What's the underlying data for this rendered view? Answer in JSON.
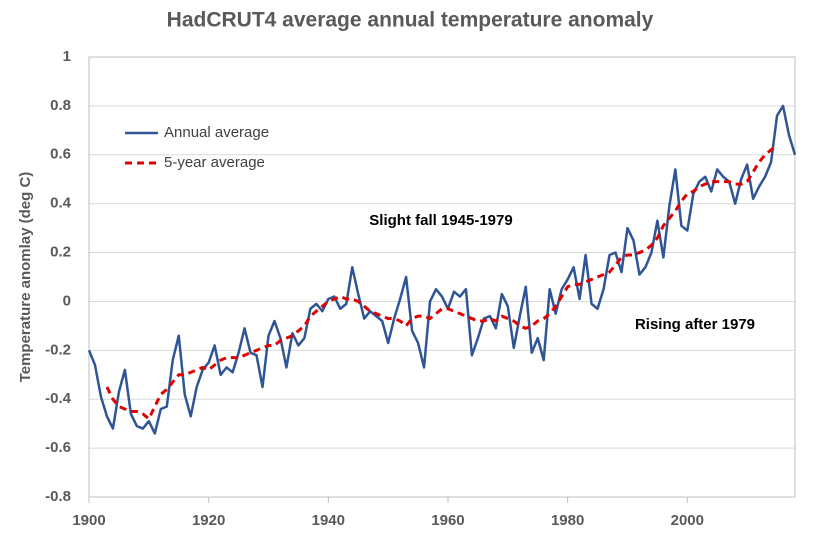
{
  "chart_data": {
    "type": "line",
    "title": "HadCRUT4 average annual temperature anomaly",
    "y_label": "Temperature anomlay (deg C)",
    "annotations": [
      "Slight fall 1945-1979",
      "Rising after 1979"
    ],
    "x": [
      1900,
      1901,
      1902,
      1903,
      1904,
      1905,
      1906,
      1907,
      1908,
      1909,
      1910,
      1911,
      1912,
      1913,
      1914,
      1915,
      1916,
      1917,
      1918,
      1919,
      1920,
      1921,
      1922,
      1923,
      1924,
      1925,
      1926,
      1927,
      1928,
      1929,
      1930,
      1931,
      1932,
      1933,
      1934,
      1935,
      1936,
      1937,
      1938,
      1939,
      1940,
      1941,
      1942,
      1943,
      1944,
      1945,
      1946,
      1947,
      1948,
      1949,
      1950,
      1951,
      1952,
      1953,
      1954,
      1955,
      1956,
      1957,
      1958,
      1959,
      1960,
      1961,
      1962,
      1963,
      1964,
      1965,
      1966,
      1967,
      1968,
      1969,
      1970,
      1971,
      1972,
      1973,
      1974,
      1975,
      1976,
      1977,
      1978,
      1979,
      1980,
      1981,
      1982,
      1983,
      1984,
      1985,
      1986,
      1987,
      1988,
      1989,
      1990,
      1991,
      1992,
      1993,
      1994,
      1995,
      1996,
      1997,
      1998,
      1999,
      2000,
      2001,
      2002,
      2003,
      2004,
      2005,
      2006,
      2007,
      2008,
      2009,
      2010,
      2011,
      2012,
      2013,
      2014,
      2015,
      2016,
      2017,
      2018
    ],
    "series": [
      {
        "name": "Annual average",
        "color": "#2f5597",
        "dash": false,
        "values": [
          -0.2,
          -0.26,
          -0.39,
          -0.47,
          -0.52,
          -0.37,
          -0.28,
          -0.46,
          -0.51,
          -0.52,
          -0.49,
          -0.54,
          -0.44,
          -0.43,
          -0.24,
          -0.14,
          -0.38,
          -0.47,
          -0.35,
          -0.28,
          -0.25,
          -0.18,
          -0.3,
          -0.27,
          -0.29,
          -0.21,
          -0.11,
          -0.21,
          -0.22,
          -0.35,
          -0.14,
          -0.08,
          -0.15,
          -0.27,
          -0.13,
          -0.18,
          -0.15,
          -0.03,
          -0.01,
          -0.04,
          0.01,
          0.02,
          -0.03,
          -0.01,
          0.14,
          0.03,
          -0.07,
          -0.04,
          -0.06,
          -0.08,
          -0.17,
          -0.07,
          0.01,
          0.1,
          -0.12,
          -0.17,
          -0.27,
          0.0,
          0.05,
          0.02,
          -0.03,
          0.04,
          0.02,
          0.05,
          -0.22,
          -0.15,
          -0.07,
          -0.06,
          -0.11,
          0.03,
          -0.02,
          -0.19,
          -0.06,
          0.06,
          -0.21,
          -0.15,
          -0.24,
          0.05,
          -0.05,
          0.05,
          0.09,
          0.14,
          0.01,
          0.19,
          -0.01,
          -0.03,
          0.05,
          0.19,
          0.2,
          0.12,
          0.3,
          0.25,
          0.11,
          0.14,
          0.2,
          0.33,
          0.18,
          0.39,
          0.54,
          0.31,
          0.29,
          0.44,
          0.49,
          0.51,
          0.45,
          0.54,
          0.51,
          0.49,
          0.4,
          0.5,
          0.56,
          0.42,
          0.47,
          0.51,
          0.57,
          0.76,
          0.8,
          0.68,
          0.6
        ]
      },
      {
        "name": "5-year average",
        "color": "#e00000",
        "dash": true,
        "values": [
          null,
          null,
          null,
          -0.35,
          -0.4,
          -0.43,
          -0.44,
          -0.45,
          -0.45,
          -0.46,
          -0.48,
          -0.43,
          -0.38,
          -0.36,
          -0.33,
          -0.3,
          -0.3,
          -0.29,
          -0.28,
          -0.27,
          -0.28,
          -0.26,
          -0.24,
          -0.23,
          -0.23,
          -0.23,
          -0.22,
          -0.21,
          -0.2,
          -0.19,
          -0.18,
          -0.18,
          -0.16,
          -0.15,
          -0.14,
          -0.12,
          -0.1,
          -0.06,
          -0.04,
          -0.02,
          0.0,
          0.01,
          0.02,
          0.01,
          0.01,
          0.0,
          -0.02,
          -0.04,
          -0.05,
          -0.06,
          -0.07,
          -0.07,
          -0.08,
          -0.1,
          -0.07,
          -0.06,
          -0.06,
          -0.07,
          -0.05,
          -0.03,
          -0.03,
          -0.04,
          -0.05,
          -0.06,
          -0.07,
          -0.08,
          -0.08,
          -0.07,
          -0.08,
          -0.06,
          -0.07,
          -0.08,
          -0.1,
          -0.11,
          -0.1,
          -0.08,
          -0.07,
          -0.05,
          -0.02,
          0.02,
          0.06,
          0.07,
          0.07,
          0.08,
          0.09,
          0.1,
          0.11,
          0.12,
          0.15,
          0.18,
          0.19,
          0.19,
          0.2,
          0.21,
          0.23,
          0.26,
          0.31,
          0.34,
          0.37,
          0.41,
          0.44,
          0.45,
          0.47,
          0.48,
          0.49,
          0.49,
          0.49,
          0.49,
          0.48,
          0.48,
          0.49,
          0.53,
          0.57,
          0.6,
          0.62,
          0.64,
          null,
          null,
          null
        ]
      }
    ],
    "xlim": [
      1900,
      2018
    ],
    "xticks": [
      1900,
      1920,
      1940,
      1960,
      1980,
      2000
    ],
    "ylim": [
      -0.8,
      1
    ],
    "yticks": [
      -0.8,
      -0.6,
      -0.4,
      -0.2,
      0,
      0.2,
      0.4,
      0.6,
      0.8,
      1
    ],
    "grid": true,
    "legend": "upper left"
  }
}
